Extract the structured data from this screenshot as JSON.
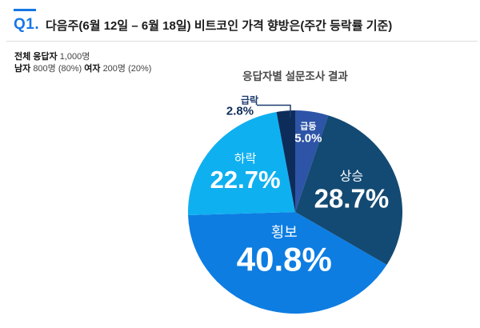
{
  "header": {
    "q_label": "Q1.",
    "title": "다음주(6월 12일 – 6월 18일) 비트코인 가격 향방은(주간 등락률 기준)"
  },
  "respondents": {
    "total_label": "전체 응답자",
    "total_value": "1,000명",
    "male_label": "남자",
    "male_value": "800명 (80%)",
    "female_label": "여자",
    "female_value": "200명 (20%)"
  },
  "chart_data": {
    "type": "pie",
    "title": "응답자별 설문조사 결과",
    "unit": "%",
    "start_angle_deg": 0,
    "direction": "clockwise",
    "slices": [
      {
        "name": "급등",
        "value": 5.0,
        "display": "5.0%",
        "color": "#2d54a7",
        "label_inside": true
      },
      {
        "name": "상승",
        "value": 28.7,
        "display": "28.7%",
        "color": "#134a73",
        "label_inside": true
      },
      {
        "name": "횡보",
        "value": 40.8,
        "display": "40.8%",
        "color": "#0d7de2",
        "label_inside": true
      },
      {
        "name": "하락",
        "value": 22.7,
        "display": "22.7%",
        "color": "#0fb0f0",
        "label_inside": true
      },
      {
        "name": "급락",
        "value": 2.8,
        "display": "2.8%",
        "color": "#0e2c5a",
        "label_inside": false
      }
    ]
  },
  "colors": {
    "accent_blue": "#1677e6",
    "callout_navy": "#1d3c6e",
    "title_text": "#1b1b1b",
    "chart_title_text": "#4a4a4a"
  }
}
